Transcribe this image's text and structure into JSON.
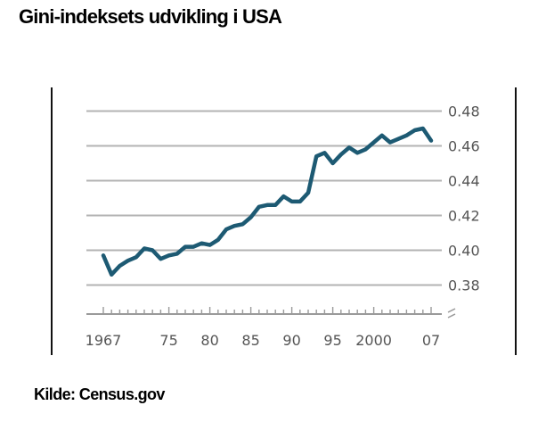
{
  "title": "Gini-indeksets udvikling i USA",
  "source": "Kilde: Census.gov",
  "chart_data": {
    "type": "line",
    "title": "Gini-indeksets udvikling i USA",
    "xlabel": "",
    "ylabel": "",
    "xlim": [
      1967,
      2007
    ],
    "ylim": [
      0.37,
      0.48
    ],
    "grid": true,
    "y_axis_side": "right",
    "line_color": "#1d5a73",
    "y_ticks": [
      "0.38",
      "0.40",
      "0.42",
      "0.44",
      "0.46",
      "0.48"
    ],
    "y_tick_values": [
      0.38,
      0.4,
      0.42,
      0.44,
      0.46,
      0.48
    ],
    "x_ticks": [
      "1967",
      "75",
      "80",
      "85",
      "90",
      "95",
      "2000",
      "07"
    ],
    "x_tick_values": [
      1967,
      1975,
      1980,
      1985,
      1990,
      1995,
      2000,
      2007
    ],
    "series": [
      {
        "x": [
          1967,
          1968,
          1969,
          1970,
          1971,
          1972,
          1973,
          1974,
          1975,
          1976,
          1977,
          1978,
          1979,
          1980,
          1981,
          1982,
          1983,
          1984,
          1985,
          1986,
          1987,
          1988,
          1989,
          1990,
          1991,
          1992,
          1993,
          1994,
          1995,
          1996,
          1997,
          1998,
          1999,
          2000,
          2001,
          2002,
          2003,
          2004,
          2005,
          2006,
          2007
        ],
        "values": [
          0.397,
          0.386,
          0.391,
          0.394,
          0.396,
          0.401,
          0.4,
          0.395,
          0.397,
          0.398,
          0.402,
          0.402,
          0.404,
          0.403,
          0.406,
          0.412,
          0.414,
          0.415,
          0.419,
          0.425,
          0.426,
          0.426,
          0.431,
          0.428,
          0.428,
          0.433,
          0.454,
          0.456,
          0.45,
          0.455,
          0.459,
          0.456,
          0.458,
          0.462,
          0.466,
          0.462,
          0.464,
          0.466,
          0.469,
          0.47,
          0.463
        ]
      }
    ]
  }
}
